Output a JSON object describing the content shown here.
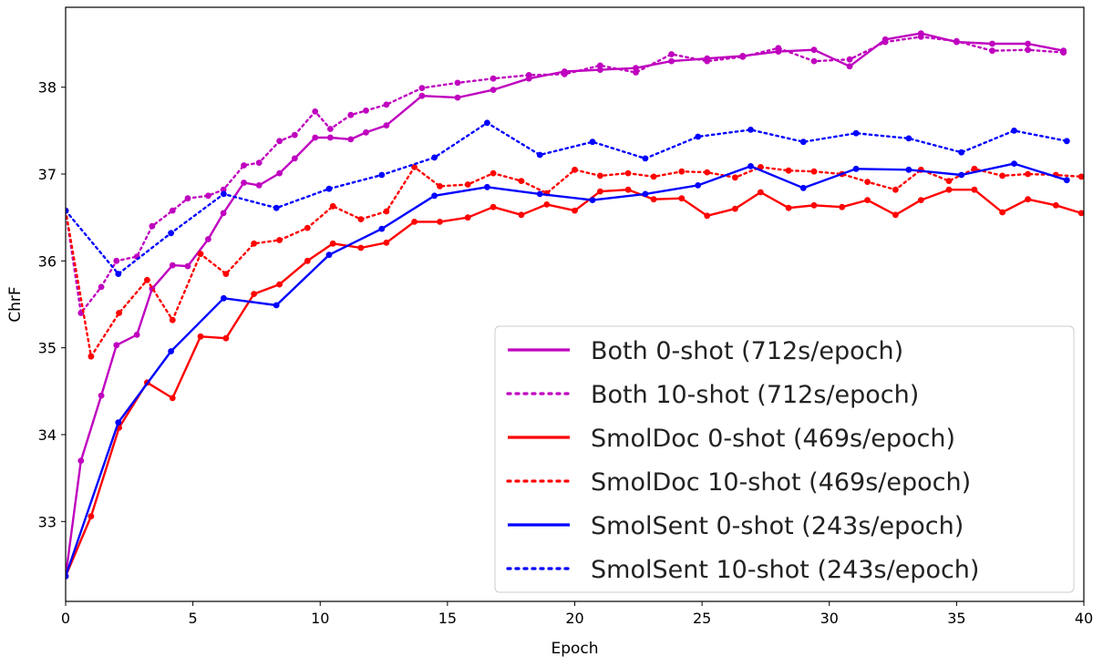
{
  "chart_data": {
    "type": "line",
    "title": "",
    "xlabel": "Epoch",
    "ylabel": "ChrF",
    "xlim": [
      0,
      40
    ],
    "ylim": [
      32.08,
      38.92
    ],
    "xticks": [
      0,
      5,
      10,
      15,
      20,
      25,
      30,
      35,
      40
    ],
    "yticks": [
      33,
      34,
      35,
      36,
      37,
      38
    ],
    "grid": false,
    "legend_position": "lower-right",
    "series": [
      {
        "name": "Both 0-shot (712s/epoch)",
        "color": "#bf00bf",
        "style": "solid",
        "x": [
          0,
          0.6,
          1.4,
          2.0,
          2.8,
          3.4,
          4.2,
          4.8,
          5.6,
          6.2,
          7.0,
          7.6,
          8.4,
          9.0,
          9.8,
          10.4,
          11.2,
          11.8,
          12.6,
          14.0,
          15.4,
          16.8,
          18.2,
          19.6,
          21.0,
          22.4,
          23.8,
          25.2,
          26.6,
          28.0,
          29.4,
          30.8,
          32.2,
          33.6,
          35.0,
          36.4,
          37.8,
          39.2
        ],
        "values": [
          32.37,
          33.7,
          34.45,
          35.03,
          35.15,
          35.68,
          35.95,
          35.94,
          36.25,
          36.55,
          36.9,
          36.87,
          37.01,
          37.18,
          37.42,
          37.42,
          37.4,
          37.48,
          37.56,
          37.9,
          37.88,
          37.97,
          38.1,
          38.18,
          38.2,
          38.22,
          38.3,
          38.33,
          38.36,
          38.41,
          38.43,
          38.24,
          38.55,
          38.62,
          38.52,
          38.5,
          38.5,
          38.42
        ]
      },
      {
        "name": "Both 10-shot (712s/epoch)",
        "color": "#bf00bf",
        "style": "dotted",
        "x": [
          0,
          0.6,
          1.4,
          2.0,
          2.8,
          3.4,
          4.2,
          4.8,
          5.6,
          6.2,
          7.0,
          7.6,
          8.4,
          9.0,
          9.8,
          10.4,
          11.2,
          11.8,
          12.6,
          14.0,
          15.4,
          16.8,
          18.2,
          19.6,
          21.0,
          22.4,
          23.8,
          25.2,
          26.6,
          28.0,
          29.4,
          30.8,
          32.2,
          33.6,
          35.0,
          36.4,
          37.8,
          39.2
        ],
        "values": [
          36.58,
          35.4,
          35.7,
          36.0,
          36.05,
          36.4,
          36.58,
          36.72,
          36.75,
          36.82,
          37.1,
          37.13,
          37.38,
          37.45,
          37.72,
          37.52,
          37.68,
          37.73,
          37.8,
          37.99,
          38.05,
          38.1,
          38.14,
          38.15,
          38.25,
          38.17,
          38.38,
          38.3,
          38.35,
          38.45,
          38.3,
          38.32,
          38.52,
          38.58,
          38.53,
          38.42,
          38.43,
          38.4
        ]
      },
      {
        "name": "SmolDoc 0-shot (469s/epoch)",
        "color": "#ff0000",
        "style": "solid",
        "x": [
          0,
          1.0,
          2.1,
          3.2,
          4.2,
          5.3,
          6.3,
          7.4,
          8.4,
          9.5,
          10.5,
          11.6,
          12.6,
          13.7,
          14.7,
          15.8,
          16.8,
          17.9,
          18.9,
          20.0,
          21.0,
          22.1,
          23.1,
          24.2,
          25.2,
          26.3,
          27.3,
          28.4,
          29.4,
          30.5,
          31.5,
          32.6,
          33.6,
          34.7,
          35.7,
          36.8,
          37.8,
          38.9,
          39.9
        ],
        "values": [
          32.37,
          33.06,
          34.08,
          34.6,
          34.42,
          35.13,
          35.11,
          35.62,
          35.73,
          36.0,
          36.2,
          36.15,
          36.21,
          36.45,
          36.45,
          36.5,
          36.62,
          36.53,
          36.65,
          36.58,
          36.8,
          36.82,
          36.71,
          36.72,
          36.52,
          36.6,
          36.79,
          36.61,
          36.64,
          36.62,
          36.7,
          36.53,
          36.7,
          36.82,
          36.82,
          36.56,
          36.71,
          36.64,
          36.55
        ]
      },
      {
        "name": "SmolDoc 10-shot (469s/epoch)",
        "color": "#ff0000",
        "style": "dotted",
        "x": [
          0,
          1.0,
          2.1,
          3.2,
          4.2,
          5.3,
          6.3,
          7.4,
          8.4,
          9.5,
          10.5,
          11.6,
          12.6,
          13.7,
          14.7,
          15.8,
          16.8,
          17.9,
          18.9,
          20.0,
          21.0,
          22.1,
          23.1,
          24.2,
          25.2,
          26.3,
          27.3,
          28.4,
          29.4,
          30.5,
          31.5,
          32.6,
          33.6,
          34.7,
          35.7,
          36.8,
          37.8,
          38.9,
          39.9
        ],
        "values": [
          36.58,
          34.9,
          35.4,
          35.78,
          35.32,
          36.08,
          35.85,
          36.2,
          36.24,
          36.38,
          36.63,
          36.48,
          36.57,
          37.08,
          36.86,
          36.88,
          37.01,
          36.92,
          36.78,
          37.05,
          36.98,
          37.01,
          36.97,
          37.03,
          37.02,
          36.96,
          37.08,
          37.04,
          37.03,
          37.0,
          36.91,
          36.82,
          37.05,
          36.92,
          37.06,
          36.98,
          37.0,
          36.99,
          36.97
        ]
      },
      {
        "name": "SmolSent 0-shot (243s/epoch)",
        "color": "#0000ff",
        "style": "solid",
        "x": [
          0,
          2.07,
          4.14,
          6.21,
          8.28,
          10.35,
          12.42,
          14.49,
          16.56,
          18.63,
          20.7,
          22.77,
          24.84,
          26.91,
          28.98,
          31.05,
          33.12,
          35.19,
          37.26,
          39.33
        ],
        "values": [
          32.37,
          34.14,
          34.96,
          35.57,
          35.49,
          36.07,
          36.37,
          36.75,
          36.85,
          36.77,
          36.7,
          36.77,
          36.87,
          37.09,
          36.84,
          37.06,
          37.05,
          36.99,
          37.12,
          36.93
        ]
      },
      {
        "name": "SmolSent 10-shot (243s/epoch)",
        "color": "#0000ff",
        "style": "dotted",
        "x": [
          0,
          2.07,
          4.14,
          6.21,
          8.28,
          10.35,
          12.42,
          14.49,
          16.56,
          18.63,
          20.7,
          22.77,
          24.84,
          26.91,
          28.98,
          31.05,
          33.12,
          35.19,
          37.26,
          39.33
        ],
        "values": [
          36.58,
          35.85,
          36.32,
          36.77,
          36.61,
          36.83,
          36.99,
          37.19,
          37.59,
          37.22,
          37.37,
          37.18,
          37.43,
          37.51,
          37.37,
          37.47,
          37.41,
          37.25,
          37.5,
          37.38
        ]
      }
    ]
  }
}
